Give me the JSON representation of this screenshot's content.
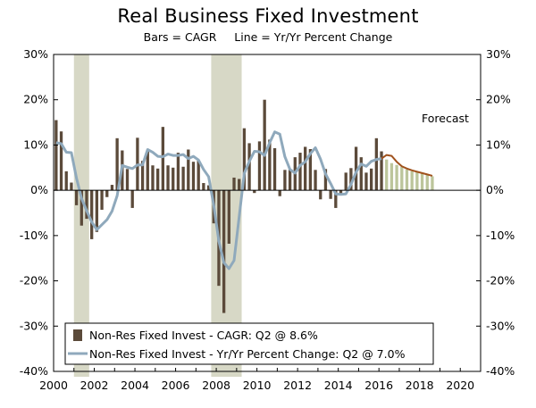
{
  "chart_data": {
    "type": "bar+line",
    "title": "Real Business Fixed Investment",
    "subtitle": "Bars = CAGR     Line = Yr/Yr Percent Change",
    "annotation": "Forecast",
    "ylim": [
      -40,
      30
    ],
    "yticks": [
      30,
      20,
      10,
      0,
      -10,
      -20,
      -30,
      -40
    ],
    "ytick_labels_left": [
      "30%",
      "20%",
      "10%",
      "0%",
      "-10%",
      "-20%",
      "-30%",
      "-40%"
    ],
    "ytick_labels_right": [
      "30%",
      "20%",
      "10%",
      "0%",
      "-10%",
      "-20%",
      "-30%",
      "-40%"
    ],
    "xlim": [
      2000,
      2021
    ],
    "xticks": [
      2000,
      2002,
      2004,
      2006,
      2008,
      2010,
      2012,
      2014,
      2016,
      2018,
      2020
    ],
    "xtick_labels": [
      "2000",
      "2002",
      "2004",
      "2006",
      "2008",
      "2010",
      "2012",
      "2014",
      "2016",
      "2018",
      "2020"
    ],
    "recessions": [
      [
        2001.0,
        2001.75
      ],
      [
        2007.75,
        2009.25
      ]
    ],
    "forecast_start": 2018.5,
    "legend": [
      "Non-Res Fixed Invest - CAGR: Q2 @ 8.6%",
      "Non-Res Fixed Invest - Yr/Yr Percent Change: Q2 @ 7.0%"
    ],
    "colors": {
      "bars": "#5b4a3a",
      "bars_forecast": "#bcc59b",
      "line": "#8fa9bc",
      "line_forecast": "#a0521d",
      "recession": "#d7d8c6"
    },
    "series": [
      {
        "name": "Non-Res Fixed Invest - CAGR",
        "type": "bar",
        "start": 2000.0,
        "step": 0.25,
        "values": [
          15.5,
          13.0,
          4.2,
          1.7,
          -3.3,
          -7.8,
          -6.3,
          -10.8,
          -9.2,
          -4.3,
          -1.5,
          1.2,
          11.5,
          8.8,
          4.7,
          -3.9,
          11.6,
          6.5,
          8.8,
          5.5,
          4.8,
          14.0,
          5.5,
          5.0,
          8.3,
          5.2,
          9.0,
          6.3,
          6.5,
          1.6,
          1.1,
          -7.3,
          -21.1,
          -27.1,
          -11.8,
          2.8,
          2.5,
          13.7,
          10.4,
          -0.6,
          10.8,
          20.0,
          11.2,
          9.3,
          -1.3,
          4.5,
          4.6,
          7.3,
          8.3,
          9.6,
          9.1,
          4.5,
          -2.0,
          4.7,
          -1.9,
          -3.9,
          -0.9,
          3.9,
          4.9,
          9.6,
          7.3,
          3.9,
          4.8,
          11.5,
          8.6
        ],
        "forecast_values": [
          6.8,
          6.0,
          5.6,
          5.2,
          4.6,
          4.2,
          4.0,
          3.8,
          3.4,
          3.1
        ]
      },
      {
        "name": "Non-Res Fixed Invest - Yr/Yr Percent Change",
        "type": "line",
        "start": 2000.0,
        "step": 0.25,
        "values": [
          10.5,
          10.3,
          8.4,
          8.3,
          2.7,
          -1.8,
          -4.5,
          -7.0,
          -8.7,
          -7.6,
          -6.5,
          -4.6,
          -1.2,
          5.5,
          5.1,
          4.8,
          5.6,
          5.6,
          9.0,
          8.4,
          7.5,
          7.4,
          8.0,
          7.7,
          7.7,
          7.9,
          7.0,
          7.5,
          6.7,
          4.6,
          3.0,
          -3.3,
          -11.2,
          -16.0,
          -17.3,
          -15.5,
          -5.9,
          3.7,
          6.4,
          8.6,
          8.5,
          7.7,
          10.5,
          12.9,
          12.4,
          7.4,
          4.6,
          3.8,
          5.5,
          6.3,
          8.1,
          9.4,
          6.9,
          3.6,
          1.5,
          -0.8,
          -0.9,
          -0.8,
          1.3,
          4.0,
          5.8,
          5.3,
          6.4,
          6.8,
          7.0
        ],
        "forecast_values": [
          7.8,
          7.6,
          6.3,
          5.3,
          4.8,
          4.4,
          4.1,
          3.8,
          3.5,
          3.2
        ]
      }
    ]
  }
}
